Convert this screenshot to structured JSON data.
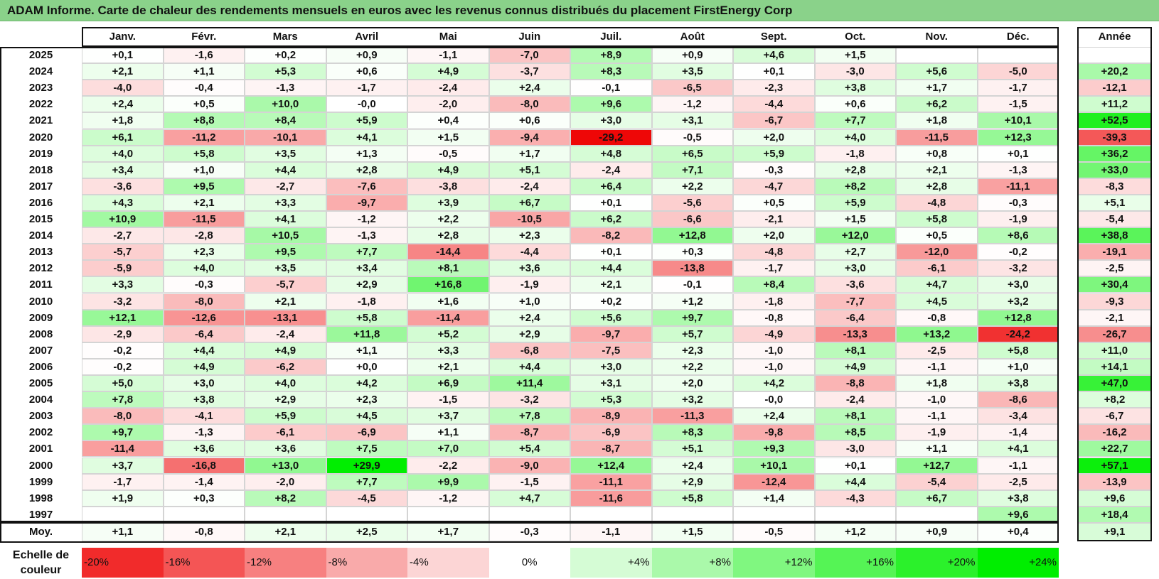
{
  "title": "ADAM Informe. Carte de chaleur des rendements mensuels en euros avec les revenus connus distribués du placement FirstEnergy Corp",
  "scale_label": "Echelle de couleur",
  "colors": {
    "positive_max": "#00ee00",
    "negative_max": "#ee0000",
    "neutral": "#ffffff",
    "title_bg": "#8ad28a"
  },
  "chart_data": {
    "type": "heatmap",
    "title": "ADAM Informe. Carte de chaleur des rendements mensuels en euros avec les revenus connus distribués du placement FirstEnergy Corp",
    "months": [
      "Janv.",
      "Févr.",
      "Mars",
      "Avril",
      "Mai",
      "Juin",
      "Juil.",
      "Août",
      "Sept.",
      "Oct.",
      "Nov.",
      "Déc."
    ],
    "year_col_label": "Année",
    "avg_label": "Moy.",
    "rows": [
      {
        "year": "2025",
        "values": [
          "+0,1",
          "-1,6",
          "+0,2",
          "+0,9",
          "-1,1",
          "-7,0",
          "+8,9",
          "+0,9",
          "+4,6",
          "+1,5",
          "",
          ""
        ],
        "total": ""
      },
      {
        "year": "2024",
        "values": [
          "+2,1",
          "+1,1",
          "+5,3",
          "+0,6",
          "+4,9",
          "-3,7",
          "+8,3",
          "+3,5",
          "+0,1",
          "-3,0",
          "+5,6",
          "-5,0"
        ],
        "total": "+20,2"
      },
      {
        "year": "2023",
        "values": [
          "-4,0",
          "-0,4",
          "-1,3",
          "-1,7",
          "-2,4",
          "+2,4",
          "-0,1",
          "-6,5",
          "-2,3",
          "+3,8",
          "+1,7",
          "-1,7"
        ],
        "total": "-12,1"
      },
      {
        "year": "2022",
        "values": [
          "+2,4",
          "+0,5",
          "+10,0",
          "-0,0",
          "-2,0",
          "-8,0",
          "+9,6",
          "-1,2",
          "-4,4",
          "+0,6",
          "+6,2",
          "-1,5"
        ],
        "total": "+11,2"
      },
      {
        "year": "2021",
        "values": [
          "+1,8",
          "+8,8",
          "+8,4",
          "+5,9",
          "+0,4",
          "+0,6",
          "+3,0",
          "+3,1",
          "-6,7",
          "+7,7",
          "+1,8",
          "+10,1"
        ],
        "total": "+52,5"
      },
      {
        "year": "2020",
        "values": [
          "+6,1",
          "-11,2",
          "-10,1",
          "+4,1",
          "+1,5",
          "-9,4",
          "-29,2",
          "-0,5",
          "+2,0",
          "+4,0",
          "-11,5",
          "+12,3"
        ],
        "total": "-39,3"
      },
      {
        "year": "2019",
        "values": [
          "+4,0",
          "+5,8",
          "+3,5",
          "+1,3",
          "-0,5",
          "+1,7",
          "+4,8",
          "+6,5",
          "+5,9",
          "-1,8",
          "+0,8",
          "+0,1"
        ],
        "total": "+36,2"
      },
      {
        "year": "2018",
        "values": [
          "+3,4",
          "+1,0",
          "+4,4",
          "+2,8",
          "+4,9",
          "+5,1",
          "-2,4",
          "+7,1",
          "-0,3",
          "+2,8",
          "+2,1",
          "-1,3"
        ],
        "total": "+33,0"
      },
      {
        "year": "2017",
        "values": [
          "-3,6",
          "+9,5",
          "-2,7",
          "-7,6",
          "-3,8",
          "-2,4",
          "+6,4",
          "+2,2",
          "-4,7",
          "+8,2",
          "+2,8",
          "-11,1"
        ],
        "total": "-8,3"
      },
      {
        "year": "2016",
        "values": [
          "+4,3",
          "+2,1",
          "+3,3",
          "-9,7",
          "+3,9",
          "+6,7",
          "+0,1",
          "-5,6",
          "+0,5",
          "+5,9",
          "-4,8",
          "-0,3"
        ],
        "total": "+5,1"
      },
      {
        "year": "2015",
        "values": [
          "+10,9",
          "-11,5",
          "+4,1",
          "-1,2",
          "+2,2",
          "-10,5",
          "+6,2",
          "-6,6",
          "-2,1",
          "+1,5",
          "+5,8",
          "-1,9"
        ],
        "total": "-5,4"
      },
      {
        "year": "2014",
        "values": [
          "-2,7",
          "-2,8",
          "+10,5",
          "-1,3",
          "+2,8",
          "+2,3",
          "-8,2",
          "+12,8",
          "+2,0",
          "+12,0",
          "+0,5",
          "+8,6"
        ],
        "total": "+38,8"
      },
      {
        "year": "2013",
        "values": [
          "-5,7",
          "+2,3",
          "+9,5",
          "+7,7",
          "-14,4",
          "-4,4",
          "+0,1",
          "+0,3",
          "-4,8",
          "+2,7",
          "-12,0",
          "-0,2"
        ],
        "total": "-19,1"
      },
      {
        "year": "2012",
        "values": [
          "-5,9",
          "+4,0",
          "+3,5",
          "+3,4",
          "+8,1",
          "+3,6",
          "+4,4",
          "-13,8",
          "-1,7",
          "+3,0",
          "-6,1",
          "-3,2"
        ],
        "total": "-2,5"
      },
      {
        "year": "2011",
        "values": [
          "+3,3",
          "-0,3",
          "-5,7",
          "+2,9",
          "+16,8",
          "-1,9",
          "+2,1",
          "-0,1",
          "+8,4",
          "-3,6",
          "+4,7",
          "+3,0"
        ],
        "total": "+30,4"
      },
      {
        "year": "2010",
        "values": [
          "-3,2",
          "-8,0",
          "+2,1",
          "-1,8",
          "+1,6",
          "+1,0",
          "+0,2",
          "+1,2",
          "-1,8",
          "-7,7",
          "+4,5",
          "+3,2"
        ],
        "total": "-9,3"
      },
      {
        "year": "2009",
        "values": [
          "+12,1",
          "-12,6",
          "-13,1",
          "+5,8",
          "-11,4",
          "+2,4",
          "+5,6",
          "+9,7",
          "-0,8",
          "-6,4",
          "-0,8",
          "+12,8"
        ],
        "total": "-2,1"
      },
      {
        "year": "2008",
        "values": [
          "-2,9",
          "-6,4",
          "-2,4",
          "+11,8",
          "+5,2",
          "+2,9",
          "-9,7",
          "+5,7",
          "-4,9",
          "-13,3",
          "+13,2",
          "-24,2"
        ],
        "total": "-26,7"
      },
      {
        "year": "2007",
        "values": [
          "-0,2",
          "+4,4",
          "+4,9",
          "+1,1",
          "+3,3",
          "-6,8",
          "-7,5",
          "+2,3",
          "-1,0",
          "+8,1",
          "-2,5",
          "+5,8"
        ],
        "total": "+11,0"
      },
      {
        "year": "2006",
        "values": [
          "-0,2",
          "+4,9",
          "-6,2",
          "+0,0",
          "+2,1",
          "+4,4",
          "+3,0",
          "+2,2",
          "-1,0",
          "+4,9",
          "-1,1",
          "+1,0"
        ],
        "total": "+14,1"
      },
      {
        "year": "2005",
        "values": [
          "+5,0",
          "+3,0",
          "+4,0",
          "+4,2",
          "+6,9",
          "+11,4",
          "+3,1",
          "+2,0",
          "+4,2",
          "-8,8",
          "+1,8",
          "+3,8"
        ],
        "total": "+47,0"
      },
      {
        "year": "2004",
        "values": [
          "+7,8",
          "+3,8",
          "+2,9",
          "+2,3",
          "-1,5",
          "-3,2",
          "+5,3",
          "+3,2",
          "-0,0",
          "-2,4",
          "-1,0",
          "-8,6"
        ],
        "total": "+8,2"
      },
      {
        "year": "2003",
        "values": [
          "-8,0",
          "-4,1",
          "+5,9",
          "+4,5",
          "+3,7",
          "+7,8",
          "-8,9",
          "-11,3",
          "+2,4",
          "+8,1",
          "-1,1",
          "-3,4"
        ],
        "total": "-6,7"
      },
      {
        "year": "2002",
        "values": [
          "+9,7",
          "-1,3",
          "-6,1",
          "-6,9",
          "+1,1",
          "-8,7",
          "-6,9",
          "+8,3",
          "-9,8",
          "+8,5",
          "-1,9",
          "-1,4"
        ],
        "total": "-16,2"
      },
      {
        "year": "2001",
        "values": [
          "-11,4",
          "+3,6",
          "+3,6",
          "+7,5",
          "+7,0",
          "+5,4",
          "-8,7",
          "+5,1",
          "+9,3",
          "-3,0",
          "+1,1",
          "+4,1"
        ],
        "total": "+22,7"
      },
      {
        "year": "2000",
        "values": [
          "+3,7",
          "-16,8",
          "+13,0",
          "+29,9",
          "-2,2",
          "-9,0",
          "+12,4",
          "+2,4",
          "+10,1",
          "+0,1",
          "+12,7",
          "-1,1"
        ],
        "total": "+57,1"
      },
      {
        "year": "1999",
        "values": [
          "-1,7",
          "-1,4",
          "-2,0",
          "+7,7",
          "+9,9",
          "-1,5",
          "-11,1",
          "+2,9",
          "-12,4",
          "+4,4",
          "-5,4",
          "-2,5"
        ],
        "total": "-13,9"
      },
      {
        "year": "1998",
        "values": [
          "+1,9",
          "+0,3",
          "+8,2",
          "-4,5",
          "-1,2",
          "+4,7",
          "-11,6",
          "+5,8",
          "+1,4",
          "-4,3",
          "+6,7",
          "+3,8"
        ],
        "total": "+9,6"
      },
      {
        "year": "1997",
        "values": [
          "",
          "",
          "",
          "",
          "",
          "",
          "",
          "",
          "",
          "",
          "",
          "+9,6"
        ],
        "total": "+18,4"
      }
    ],
    "averages": [
      "+1,1",
      "-0,8",
      "+2,1",
      "+2,5",
      "+1,7",
      "-0,3",
      "-1,1",
      "+1,5",
      "-0,5",
      "+1,2",
      "+0,9",
      "+0,4"
    ],
    "average_total": "+9,1",
    "scale": [
      "-20%",
      "-16%",
      "-12%",
      "-8%",
      "-4%",
      "0%",
      "+4%",
      "+8%",
      "+12%",
      "+16%",
      "+20%",
      "+24%"
    ],
    "scale_values": [
      -20,
      -16,
      -12,
      -8,
      -4,
      0,
      4,
      8,
      12,
      16,
      20,
      24
    ]
  }
}
